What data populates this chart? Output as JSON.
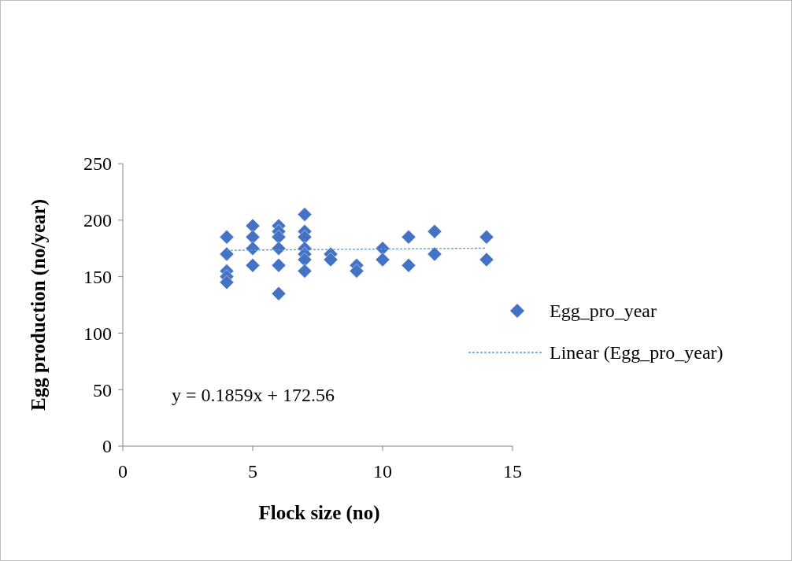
{
  "chart_data": {
    "type": "scatter",
    "xlabel": "Flock size (no)",
    "ylabel": "Egg production (no/year)",
    "xlim": [
      0,
      15
    ],
    "xticks": [
      0,
      5,
      10,
      15
    ],
    "ylim": [
      0,
      250
    ],
    "yticks": [
      0,
      50,
      100,
      150,
      200,
      250
    ],
    "grid": false,
    "legend": "right",
    "annotations": [
      "y = 0.1859x + 172.56"
    ],
    "series": [
      {
        "name": "Egg_pro_year",
        "color": "#4472c4",
        "marker": "diamond",
        "x": [
          4,
          4,
          4,
          4,
          4,
          5,
          5,
          5,
          5,
          6,
          6,
          6,
          6,
          6,
          6,
          7,
          7,
          7,
          7,
          7,
          7,
          7,
          8,
          8,
          9,
          9,
          10,
          10,
          11,
          11,
          12,
          12,
          14,
          14
        ],
        "values": [
          185,
          170,
          155,
          150,
          145,
          195,
          185,
          175,
          160,
          195,
          190,
          185,
          175,
          160,
          135,
          205,
          190,
          185,
          175,
          170,
          165,
          155,
          170,
          165,
          160,
          155,
          175,
          165,
          185,
          160,
          190,
          170,
          185,
          165
        ]
      },
      {
        "name": "Linear (Egg_pro_year)",
        "type": "line",
        "color": "#5b9bd5",
        "line_style": "dashed",
        "marker": "none",
        "x": [
          4,
          14
        ],
        "values": [
          173.3,
          175.2
        ]
      }
    ]
  }
}
